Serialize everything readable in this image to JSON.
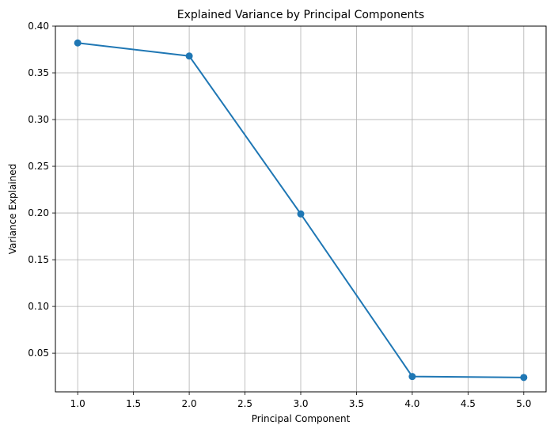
{
  "chart_data": {
    "type": "line",
    "title": "Explained Variance by Principal Components",
    "xlabel": "Principal Component",
    "ylabel": "Variance Explained",
    "x": [
      1,
      2,
      3,
      4,
      5
    ],
    "series": [
      {
        "values": [
          0.382,
          0.368,
          0.199,
          0.025,
          0.024
        ]
      }
    ],
    "xlim": [
      0.8,
      5.2
    ],
    "ylim": [
      0.0086,
      0.4
    ],
    "xticks": [
      "1.0",
      "1.5",
      "2.0",
      "2.5",
      "3.0",
      "3.5",
      "4.0",
      "4.5",
      "5.0"
    ],
    "yticks": [
      "0.05",
      "0.10",
      "0.15",
      "0.20",
      "0.25",
      "0.30",
      "0.35",
      "0.40"
    ],
    "grid": true,
    "line_color": "#1f77b4",
    "marker": "circle"
  }
}
